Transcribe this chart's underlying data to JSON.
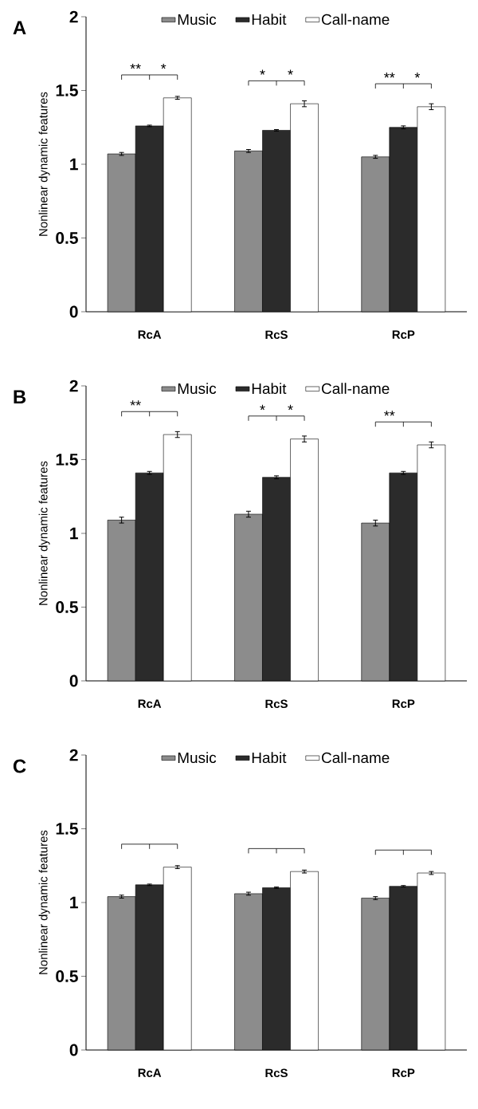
{
  "chart_data": [
    {
      "type": "bar",
      "title": "A",
      "ylabel": "Nonlinear dynamic features",
      "categories": [
        "RcA",
        "RcS",
        "RcP"
      ],
      "series": [
        {
          "name": "Music",
          "color": "#8c8c8c",
          "values": [
            1.07,
            1.09,
            1.05
          ],
          "errors": [
            0.01,
            0.01,
            0.01
          ]
        },
        {
          "name": "Habit",
          "color": "#2b2b2b",
          "values": [
            1.26,
            1.23,
            1.25
          ],
          "errors": [
            0.005,
            0.005,
            0.01
          ]
        },
        {
          "name": "Call-name",
          "color": "#ffffff",
          "values": [
            1.45,
            1.41,
            1.39
          ],
          "errors": [
            0.01,
            0.02,
            0.02
          ]
        }
      ],
      "ylim": [
        0,
        2
      ],
      "yticks": [
        0,
        0.5,
        1,
        1.5,
        2
      ],
      "legend": "top",
      "grid": false,
      "annotations": [
        "**",
        "*",
        "*",
        "*",
        "**",
        "*"
      ]
    },
    {
      "type": "bar",
      "title": "B",
      "ylabel": "Nonlinear dynamic features",
      "categories": [
        "RcA",
        "RcS",
        "RcP"
      ],
      "series": [
        {
          "name": "Music",
          "color": "#8c8c8c",
          "values": [
            1.09,
            1.13,
            1.07
          ],
          "errors": [
            0.02,
            0.02,
            0.02
          ]
        },
        {
          "name": "Habit",
          "color": "#2b2b2b",
          "values": [
            1.41,
            1.38,
            1.41
          ],
          "errors": [
            0.01,
            0.01,
            0.01
          ]
        },
        {
          "name": "Call-name",
          "color": "#ffffff",
          "values": [
            1.67,
            1.64,
            1.6
          ],
          "errors": [
            0.02,
            0.02,
            0.02
          ]
        }
      ],
      "ylim": [
        0,
        2
      ],
      "yticks": [
        0,
        0.5,
        1,
        1.5,
        2
      ],
      "legend": "top",
      "grid": false,
      "annotations": [
        "**",
        "*",
        "*",
        "**"
      ]
    },
    {
      "type": "bar",
      "title": "C",
      "ylabel": "Nonlinear dynamic features",
      "categories": [
        "RcA",
        "RcS",
        "RcP"
      ],
      "series": [
        {
          "name": "Music",
          "color": "#8c8c8c",
          "values": [
            1.04,
            1.06,
            1.03
          ],
          "errors": [
            0.01,
            0.01,
            0.01
          ]
        },
        {
          "name": "Habit",
          "color": "#2b2b2b",
          "values": [
            1.12,
            1.1,
            1.11
          ],
          "errors": [
            0.005,
            0.005,
            0.005
          ]
        },
        {
          "name": "Call-name",
          "color": "#ffffff",
          "values": [
            1.24,
            1.21,
            1.2
          ],
          "errors": [
            0.01,
            0.01,
            0.01
          ]
        }
      ],
      "ylim": [
        0,
        2
      ],
      "yticks": [
        0,
        0.5,
        1,
        1.5,
        2
      ],
      "legend": "top",
      "grid": false
    }
  ]
}
